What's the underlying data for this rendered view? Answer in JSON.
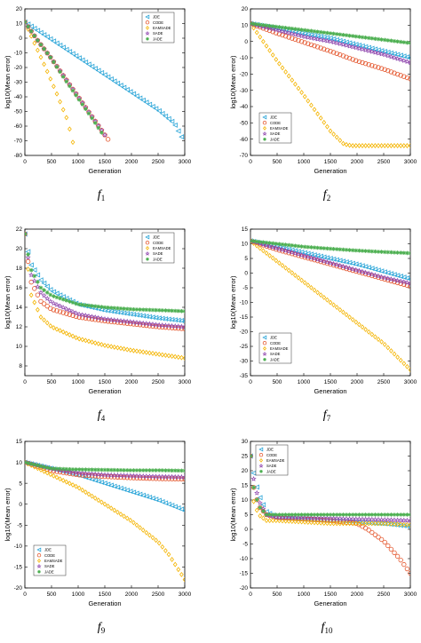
{
  "colors": {
    "jDE": "#2aa5d8",
    "CoDE": "#e4572e",
    "EAMSADE": "#f4b400",
    "SADE": "#8e44ad",
    "JADE": "#4caf50",
    "axis": "#000000"
  },
  "marker_shapes": {
    "jDE": "triangle-left",
    "CoDE": "circle",
    "EAMSADE": "diamond",
    "SADE": "star",
    "JADE": "asterisk"
  },
  "chart_data": [
    {
      "type": "scatter",
      "caption": "f1",
      "xlabel": "Generation",
      "ylabel": "log10(Mean error)",
      "xlim": [
        0,
        3000
      ],
      "ylim": [
        -80,
        20
      ],
      "xticks": [
        0,
        500,
        1000,
        1500,
        2000,
        2500,
        3000
      ],
      "yticks": [
        20,
        10,
        0,
        -10,
        -20,
        -30,
        -40,
        -50,
        -60,
        -70,
        -80
      ],
      "legend_position": "top-right",
      "series": [
        {
          "name": "JDE",
          "x": [
            0,
            500,
            1000,
            1500,
            2000,
            2500,
            2800,
            2950
          ],
          "y": [
            11,
            -1,
            -13,
            -25,
            -37,
            -49,
            -58,
            -68
          ]
        },
        {
          "name": "CODE",
          "x": [
            0,
            250,
            500,
            750,
            1000,
            1250,
            1500,
            1560
          ],
          "y": [
            11,
            -2,
            -14,
            -27,
            -40,
            -53,
            -66,
            -69
          ]
        },
        {
          "name": "EAMSADE",
          "x": [
            0,
            200,
            400,
            600,
            800,
            900
          ],
          "y": [
            11,
            -5,
            -21,
            -38,
            -56,
            -71
          ]
        },
        {
          "name": "SADE",
          "x": [
            0,
            250,
            500,
            750,
            1000,
            1250,
            1500,
            1540
          ],
          "y": [
            11,
            -2,
            -14,
            -27,
            -40,
            -53,
            -66,
            -69
          ]
        },
        {
          "name": "JADE",
          "x": [
            0,
            250,
            500,
            750,
            1000,
            1250,
            1450
          ],
          "y": [
            11,
            -2,
            -14,
            -28,
            -41,
            -54,
            -65
          ]
        }
      ]
    },
    {
      "type": "scatter",
      "caption": "f2",
      "xlabel": "Generation",
      "ylabel": "log10(Mean error)",
      "xlim": [
        0,
        3000
      ],
      "ylim": [
        -70,
        20
      ],
      "xticks": [
        0,
        500,
        1000,
        1500,
        2000,
        2500,
        3000
      ],
      "yticks": [
        20,
        10,
        0,
        -10,
        -20,
        -30,
        -40,
        -50,
        -60,
        -70
      ],
      "legend_position": "bottom-left",
      "series": [
        {
          "name": "JDE",
          "x": [
            0,
            500,
            1000,
            1500,
            2000,
            2500,
            3000
          ],
          "y": [
            11,
            8,
            5,
            2,
            -2,
            -6,
            -10
          ]
        },
        {
          "name": "CODE",
          "x": [
            0,
            500,
            1000,
            1500,
            2000,
            2500,
            3000
          ],
          "y": [
            11,
            5,
            -0.5,
            -6,
            -12,
            -17,
            -23
          ]
        },
        {
          "name": "EAMSADE",
          "x": [
            0,
            500,
            1000,
            1500,
            1750,
            1900,
            2200,
            2600,
            3000
          ],
          "y": [
            11,
            -12,
            -33,
            -55,
            -63,
            -64,
            -64,
            -64,
            -64
          ]
        },
        {
          "name": "SADE",
          "x": [
            0,
            500,
            1000,
            1500,
            2000,
            2500,
            3000
          ],
          "y": [
            11,
            7,
            3,
            0,
            -4,
            -8,
            -13
          ]
        },
        {
          "name": "JADE",
          "x": [
            0,
            500,
            1000,
            1500,
            2000,
            2500,
            3000
          ],
          "y": [
            11,
            9,
            7,
            5,
            3,
            1,
            -1
          ]
        }
      ]
    },
    {
      "type": "scatter",
      "caption": "f4",
      "xlabel": "Generation",
      "ylabel": "log10(Mean error)",
      "xlim": [
        0,
        3000
      ],
      "ylim": [
        7,
        22
      ],
      "xticks": [
        0,
        500,
        1000,
        1500,
        2000,
        2500,
        3000
      ],
      "yticks": [
        22,
        20,
        18,
        16,
        14,
        12,
        10,
        8
      ],
      "legend_position": "top-right",
      "series": [
        {
          "name": "JDE",
          "x": [
            0,
            100,
            300,
            500,
            1000,
            1500,
            2000,
            2500,
            3000
          ],
          "y": [
            21.5,
            18.5,
            16.8,
            15.7,
            14.3,
            13.7,
            13.3,
            12.9,
            12.6
          ]
        },
        {
          "name": "CODE",
          "x": [
            0,
            100,
            300,
            500,
            1000,
            1500,
            2000,
            2500,
            3000
          ],
          "y": [
            21.5,
            16.8,
            14.6,
            13.8,
            13.0,
            12.6,
            12.3,
            12.0,
            11.8
          ]
        },
        {
          "name": "EAMSADE",
          "x": [
            0,
            100,
            300,
            500,
            1000,
            1500,
            2000,
            2500,
            3000
          ],
          "y": [
            21.5,
            15.5,
            13.0,
            12.0,
            10.8,
            10.1,
            9.6,
            9.2,
            8.8
          ]
        },
        {
          "name": "SADE",
          "x": [
            0,
            100,
            300,
            500,
            1000,
            1500,
            2000,
            2500,
            3000
          ],
          "y": [
            21.5,
            17.5,
            15.5,
            14.5,
            13.3,
            12.8,
            12.5,
            12.2,
            12.0
          ]
        },
        {
          "name": "JADE",
          "x": [
            0,
            100,
            300,
            500,
            1000,
            1500,
            2000,
            2500,
            3000
          ],
          "y": [
            21.5,
            18.0,
            16.0,
            15.2,
            14.3,
            14.0,
            13.8,
            13.7,
            13.6
          ]
        }
      ]
    },
    {
      "type": "scatter",
      "caption": "f7",
      "xlabel": "Generation",
      "ylabel": "log10(Mean error)",
      "xlim": [
        0,
        3000
      ],
      "ylim": [
        -35,
        15
      ],
      "xticks": [
        0,
        500,
        1000,
        1500,
        2000,
        2500,
        3000
      ],
      "yticks": [
        15,
        10,
        5,
        0,
        -5,
        -10,
        -15,
        -20,
        -25,
        -30,
        -35
      ],
      "legend_position": "bottom-left",
      "series": [
        {
          "name": "JDE",
          "x": [
            0,
            500,
            1000,
            1500,
            2000,
            2500,
            3000
          ],
          "y": [
            11,
            9,
            7,
            5,
            3,
            0.5,
            -2
          ]
        },
        {
          "name": "CODE",
          "x": [
            0,
            500,
            1000,
            1500,
            2000,
            2500,
            3000
          ],
          "y": [
            11,
            8,
            5.5,
            3,
            0.5,
            -2,
            -4.5
          ]
        },
        {
          "name": "EAMSADE",
          "x": [
            0,
            500,
            1000,
            1500,
            2000,
            2500,
            3000
          ],
          "y": [
            11,
            4,
            -3,
            -10,
            -17,
            -24,
            -33
          ]
        },
        {
          "name": "SADE",
          "x": [
            0,
            500,
            1000,
            1500,
            2000,
            2500,
            3000
          ],
          "y": [
            11,
            8.5,
            6,
            3.5,
            1,
            -1.5,
            -3.5
          ]
        },
        {
          "name": "JADE",
          "x": [
            0,
            500,
            1000,
            1500,
            2000,
            2500,
            3000
          ],
          "y": [
            11,
            10,
            9,
            8.3,
            7.7,
            7.2,
            6.8
          ]
        }
      ]
    },
    {
      "type": "scatter",
      "caption": "f9",
      "xlabel": "Generation",
      "ylabel": "log10(Mean error)",
      "xlim": [
        0,
        3000
      ],
      "ylim": [
        -20,
        15
      ],
      "xticks": [
        0,
        500,
        1000,
        1500,
        2000,
        2500,
        3000
      ],
      "yticks": [
        15,
        10,
        5,
        0,
        -5,
        -10,
        -15,
        -20
      ],
      "legend_position": "bottom-left",
      "series": [
        {
          "name": "JDE",
          "x": [
            0,
            500,
            1000,
            1500,
            2000,
            2500,
            3000
          ],
          "y": [
            10,
            8.5,
            7,
            5,
            3,
            1,
            -1.5
          ]
        },
        {
          "name": "CODE",
          "x": [
            0,
            500,
            1000,
            1500,
            2000,
            2500,
            3000
          ],
          "y": [
            10,
            8,
            7,
            6.6,
            6.3,
            6.1,
            6
          ]
        },
        {
          "name": "EAMSADE",
          "x": [
            0,
            500,
            1000,
            1500,
            2000,
            2500,
            2700,
            3000
          ],
          "y": [
            10,
            7,
            4,
            0,
            -4,
            -9,
            -12,
            -18
          ]
        },
        {
          "name": "SADE",
          "x": [
            0,
            500,
            1000,
            1500,
            2000,
            2500,
            3000
          ],
          "y": [
            10,
            8.5,
            7.5,
            7,
            6.8,
            6.6,
            6.5
          ]
        },
        {
          "name": "JADE",
          "x": [
            0,
            500,
            1000,
            1500,
            2000,
            2500,
            3000
          ],
          "y": [
            10,
            8.5,
            8.3,
            8.2,
            8.1,
            8.1,
            8
          ]
        }
      ]
    },
    {
      "type": "scatter",
      "caption": "f10",
      "xlabel": "Generation",
      "ylabel": "log10(Mean error)",
      "xlim": [
        0,
        3000
      ],
      "ylim": [
        -20,
        30
      ],
      "xticks": [
        0,
        500,
        1000,
        1500,
        2000,
        2500,
        3000
      ],
      "yticks": [
        30,
        25,
        20,
        15,
        10,
        5,
        0,
        -5,
        -10,
        -15,
        -20
      ],
      "legend_position": "top-left",
      "series": [
        {
          "name": "JDE",
          "x": [
            0,
            50,
            150,
            300,
            500,
            1000,
            1500,
            2000,
            2500,
            3000
          ],
          "y": [
            25,
            20,
            12,
            6,
            4,
            3.5,
            3,
            2.5,
            2,
            1
          ]
        },
        {
          "name": "CODE",
          "x": [
            0,
            50,
            150,
            300,
            500,
            1000,
            1500,
            2000,
            2200,
            2500,
            2800,
            3000
          ],
          "y": [
            25,
            15,
            8,
            5,
            4,
            3.5,
            3,
            2,
            0,
            -4,
            -10,
            -15
          ]
        },
        {
          "name": "EAMSADE",
          "x": [
            0,
            50,
            150,
            300,
            500,
            1000,
            1500,
            2000,
            2500,
            3000
          ],
          "y": [
            25,
            10,
            5,
            3,
            3,
            2.5,
            2,
            2,
            2,
            1.5
          ]
        },
        {
          "name": "SADE",
          "x": [
            0,
            50,
            150,
            300,
            500,
            1000,
            1500,
            2000,
            2500,
            3000
          ],
          "y": [
            25,
            18,
            10,
            5,
            4,
            4,
            3.8,
            3.5,
            3.3,
            3
          ]
        },
        {
          "name": "JADE",
          "x": [
            0,
            50,
            150,
            300,
            500,
            1000,
            1500,
            2000,
            2500,
            3000
          ],
          "y": [
            25,
            15,
            8,
            5,
            5,
            5,
            5,
            5,
            5,
            5
          ]
        }
      ]
    }
  ]
}
